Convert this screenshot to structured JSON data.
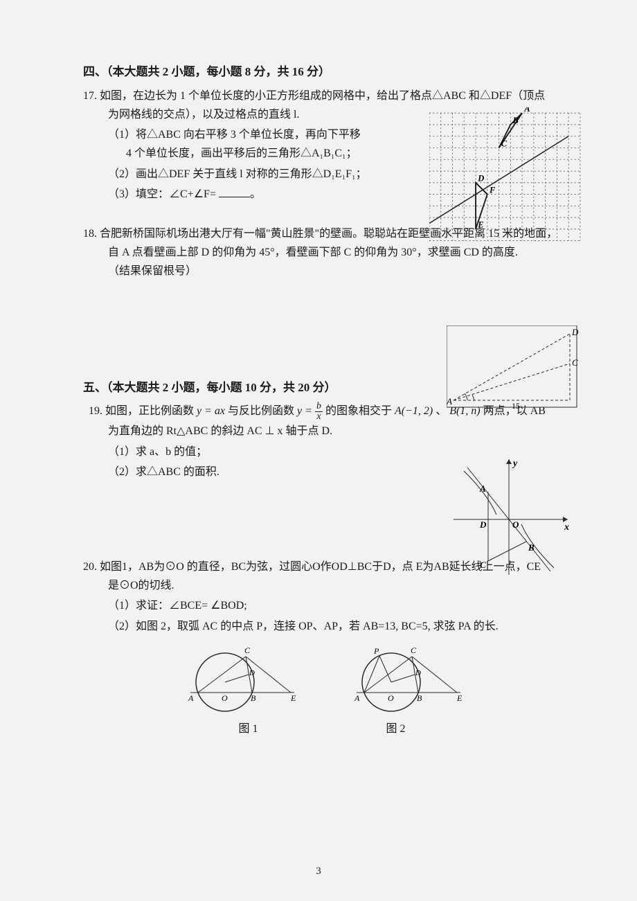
{
  "section4": {
    "title": "四、（本大题共 2 小题，每小题 8 分，共 16 分）",
    "p17": {
      "num": "17.",
      "stem1": "如图，在边长为 1 个单位长度的小正方形组成的网格中，给出了格点△ABC 和△DEF（顶点",
      "stem2": "为网格线的交点），以及过格点的直线 l.",
      "sub1a": "（1）将△ABC 向右平移 3 个单位长度，再向下平移",
      "sub1b": "4 个单位长度，画出平移后的三角形△A₁B₁C₁；",
      "sub2": "（2）画出△DEF 关于直线 l 对称的三角形△D₁E₁F₁；",
      "sub3_prefix": "（3）填空：∠C+∠F= ",
      "sub3_suffix": "。",
      "grid": {
        "cols": 13,
        "rows": 11,
        "cell": 16,
        "stroke": "#555",
        "dash": "2,3",
        "line_l_color": "#2a2a2a",
        "labels": {
          "A": "A",
          "B": "B",
          "C": "C",
          "D": "D",
          "E": "E",
          "F": "F"
        },
        "A": [
          8,
          0
        ],
        "B": [
          7,
          1
        ],
        "C": [
          6,
          3
        ],
        "D": [
          4,
          6
        ],
        "E": [
          4,
          10
        ],
        "F": [
          5,
          7
        ],
        "line_l": [
          [
            0,
            5.5
          ],
          [
            12,
            -2
          ]
        ]
      }
    },
    "p18": {
      "num": "18.",
      "line1": "合肥新桥国际机场出港大厅有一幅\"黄山胜景\"的壁画。聪聪站在距壁画水平距离 15 米的地面，",
      "line2": "自 A 点看壁画上部 D 的仰角为 45°，看壁画下部 C 的仰角为 30°，求壁画 CD 的高度.",
      "line3": "（结果保留根号）",
      "fig": {
        "A_label": "A",
        "C_label": "C",
        "D_label": "D",
        "dist_label": "15",
        "stroke": "#2a2a2a",
        "dash": "4,3"
      }
    }
  },
  "section5": {
    "title": "五、（本大题共 2 小题，每小题 10 分，共 20 分）",
    "p19": {
      "num": "19.",
      "line1_a": "如图，正比例函数 ",
      "line1_b": " 与反比例函数 ",
      "line1_c": " 的图象相交于 ",
      "line1_d": "、",
      "line1_e": " 两点，以 AB",
      "eq1_lhs": "y = ax",
      "eq2_lhs": "y = ",
      "eq2_num": "b",
      "eq2_den": "x",
      "pointA": "A(−1, 2)",
      "pointB": "B(1, n)",
      "line2": "为直角边的 Rt△ABC 的斜边 AC ⊥ x 轴于点 D.",
      "sub1": "（1）求 a、b 的值；",
      "sub2": "（2）求△ABC 的面积.",
      "fig": {
        "labels": {
          "A": "A",
          "B": "B",
          "C": "C",
          "D": "D",
          "O": "O",
          "x": "x",
          "y": "y"
        },
        "stroke": "#2a2a2a"
      }
    },
    "p20": {
      "num": "20.",
      "line1": "如图1，AB为⊙O 的直径，BC为弦，过圆心O作OD⊥BC于D，点 E为AB延长线上一点，CE",
      "line2": "是⊙O的切线.",
      "sub1": "（1）求证：∠BCE= ∠BOD;",
      "sub2": "（2）如图 2，取弧 AC 的中点 P，连接 OP、AP，若 AB=13, BC=5, 求弦 PA 的长.",
      "fig1_caption": "图 1",
      "fig2_caption": "图 2",
      "fig": {
        "labels": {
          "A": "A",
          "B": "B",
          "C": "C",
          "D": "D",
          "E": "E",
          "O": "O",
          "P": "P"
        },
        "stroke": "#2a2a2a"
      }
    }
  },
  "page_number": "3",
  "colors": {
    "text": "#1a1a1a",
    "bg": "#f2f2f0"
  }
}
